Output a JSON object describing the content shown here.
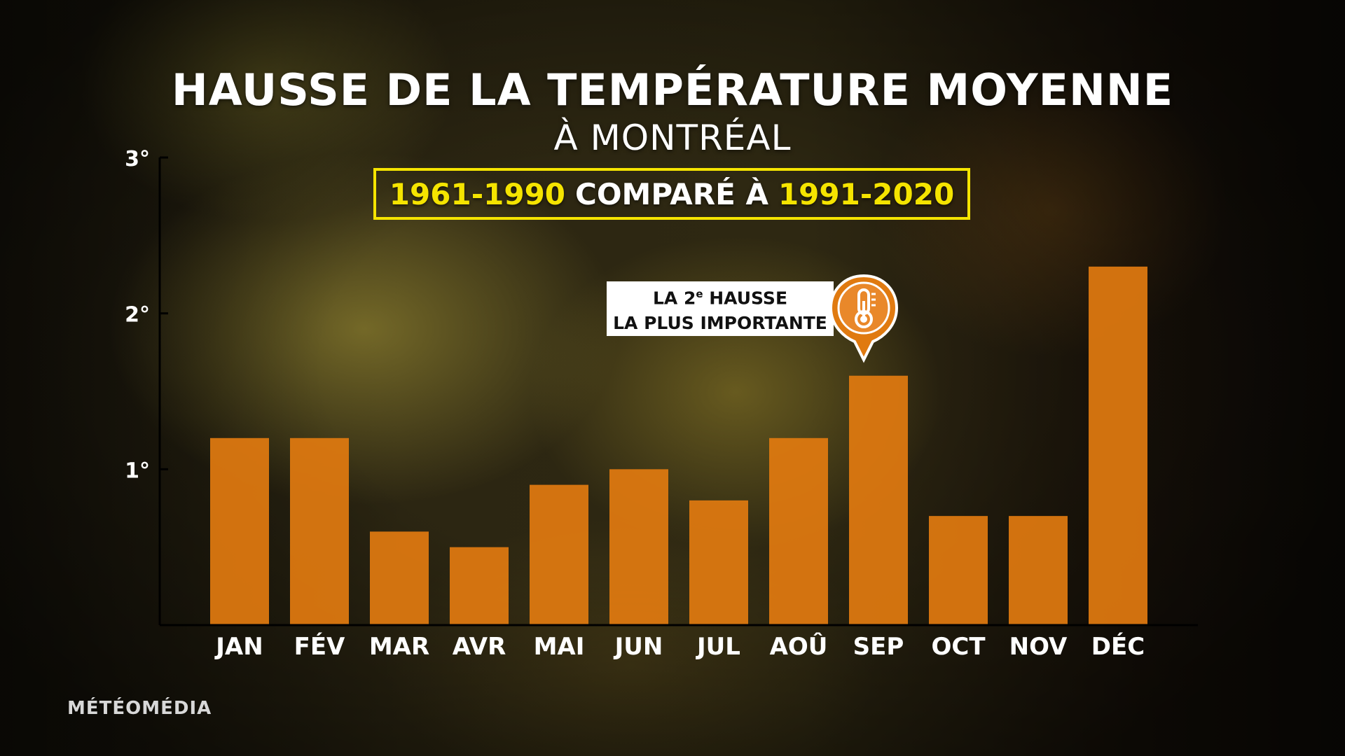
{
  "header": {
    "title": "HAUSSE DE LA TEMPÉRATURE MOYENNE",
    "subtitle": "À MONTRÉAL",
    "period_start": "1961-1990",
    "period_connector": "COMPARÉ À",
    "period_end": "1991-2020"
  },
  "callout": {
    "line1_prefix": "LA 2",
    "line1_sup": "e",
    "line1_suffix": " HAUSSE",
    "line2": "LA PLUS IMPORTANTE",
    "icon": "thermometer-icon",
    "target_month": "SEP"
  },
  "brand": {
    "label": "MÉTÉOMÉDIA"
  },
  "colors": {
    "bar": "#e07a10",
    "accent": "#f5e400",
    "axis": "#000000"
  },
  "chart_data": {
    "type": "bar",
    "title": "HAUSSE DE LA TEMPÉRATURE MOYENNE",
    "subtitle": "À MONTRÉAL",
    "categories": [
      "JAN",
      "FÉV",
      "MAR",
      "AVR",
      "MAI",
      "JUN",
      "JUL",
      "AOÛ",
      "SEP",
      "OCT",
      "NOV",
      "DÉC"
    ],
    "values": [
      1.2,
      1.2,
      0.6,
      0.5,
      0.9,
      1.0,
      0.8,
      1.2,
      1.6,
      0.7,
      0.7,
      2.3
    ],
    "ylim": [
      0,
      3
    ],
    "yticks": [
      1,
      2,
      3
    ],
    "ytick_labels": [
      "1°",
      "2°",
      "3°"
    ],
    "grid": false,
    "legend": "none"
  }
}
